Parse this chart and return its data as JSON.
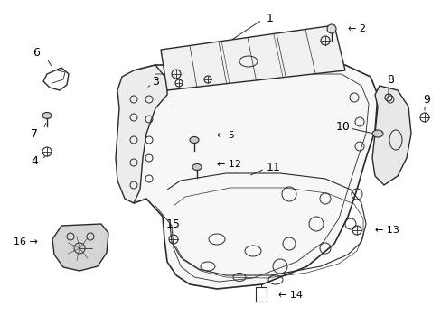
{
  "background_color": "#ffffff",
  "line_color": "#2a2a2a",
  "label_color": "#000000",
  "fig_w": 4.89,
  "fig_h": 3.6,
  "dpi": 100
}
